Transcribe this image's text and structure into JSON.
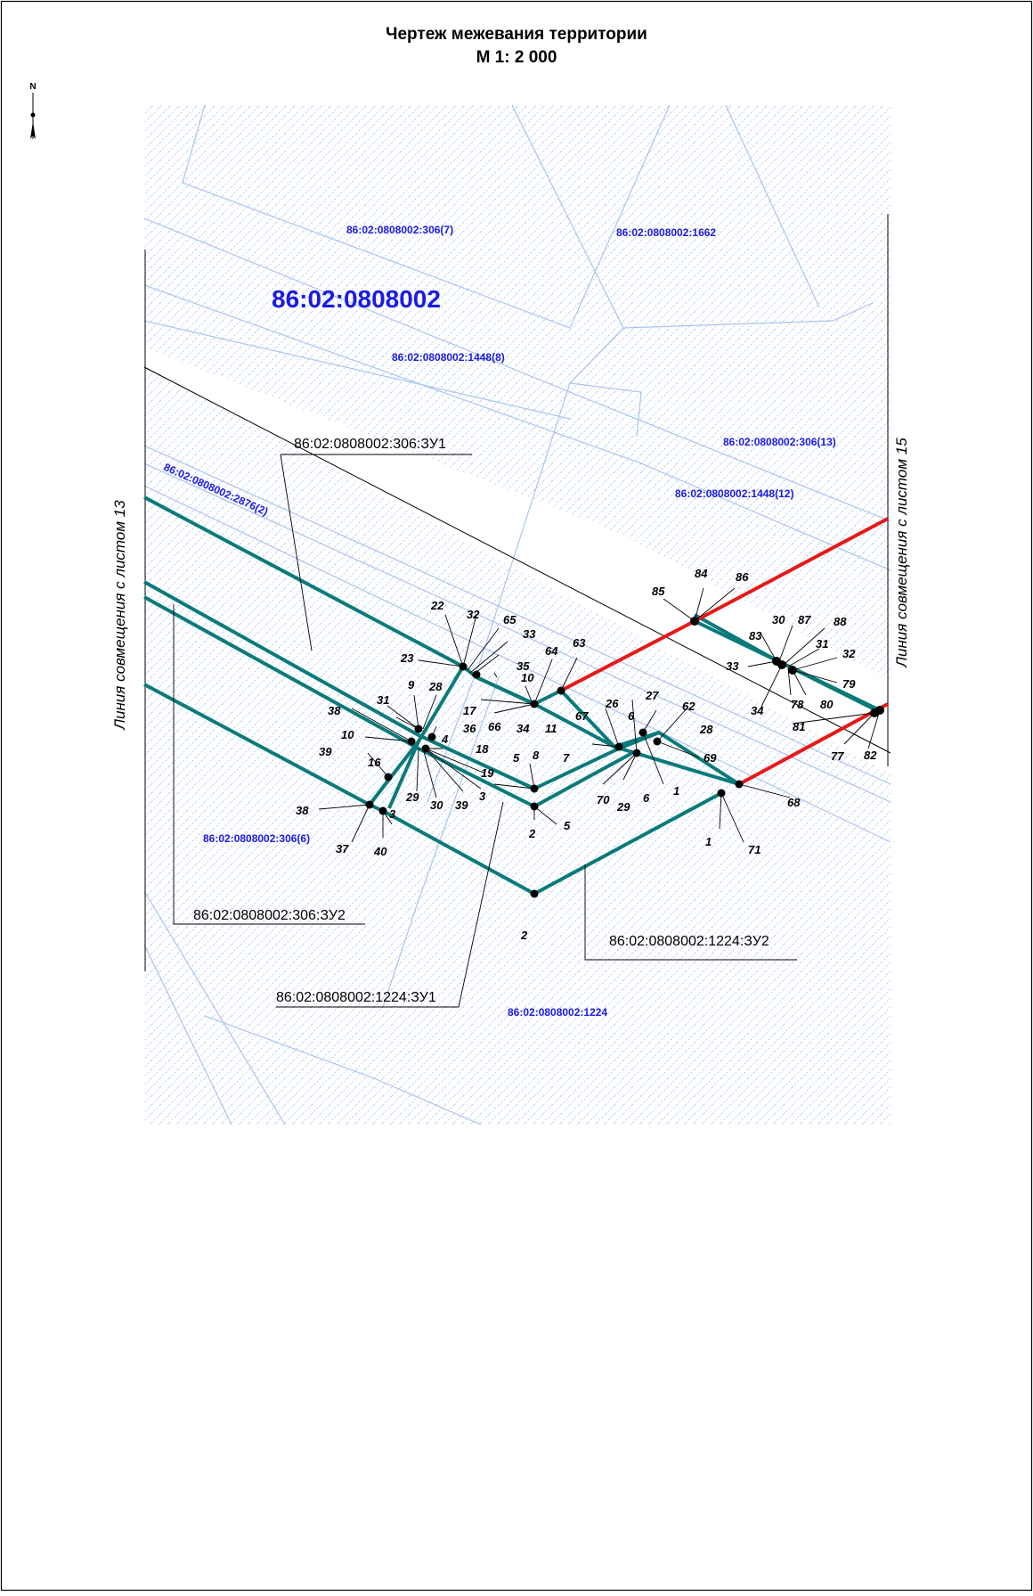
{
  "title": {
    "line1": "Чертеж межевания территории",
    "line2": "М 1: 2 000"
  },
  "north_arrow": {
    "letter": "N"
  },
  "colors": {
    "hatch": "#9bb8ec",
    "parcel_line": "#a9c4f0",
    "cadastre_label": "#1a1ae6",
    "new_parcel": "#0a7a7a",
    "red_line": "#e61919",
    "leader": "#000000"
  },
  "side_labels": {
    "left": "Линия совмещения с листом 13",
    "right": "Линия совмещения с листом 15"
  },
  "block_label": "86:02:0808002",
  "cadastre_labels": [
    "86:02:0808002:306(7)",
    "86:02:0808002:1662",
    "86:02:0808002:1448(8)",
    "86:02:0808002:306(13)",
    "86:02:0808002:1448(12)",
    "86:02:0808002:2876(2)",
    "86:02:0808002:306(6)",
    "86:02:0808002:1224"
  ],
  "zone_labels": [
    "86:02:0808002:306:ЗУ1",
    "86:02:0808002:306:ЗУ2",
    "86:02:0808002:1224:ЗУ1",
    "86:02:0808002:1224:ЗУ2"
  ],
  "point_labels": [
    "22",
    "32",
    "65",
    "33",
    "23",
    "35",
    "10",
    "64",
    "63",
    "9",
    "28",
    "31",
    "38",
    "17",
    "36",
    "66",
    "34",
    "11",
    "10",
    "4",
    "18",
    "39",
    "16",
    "5",
    "8",
    "26",
    "6",
    "67",
    "27",
    "62",
    "7",
    "28",
    "69",
    "19",
    "29",
    "30",
    "39",
    "3",
    "70",
    "29",
    "6",
    "1",
    "38",
    "3",
    "37",
    "40",
    "2",
    "5",
    "1",
    "71",
    "68",
    "2",
    "84",
    "86",
    "85",
    "30",
    "87",
    "88",
    "83",
    "31",
    "32",
    "33",
    "79",
    "34",
    "78",
    "80",
    "81",
    "77",
    "82"
  ]
}
